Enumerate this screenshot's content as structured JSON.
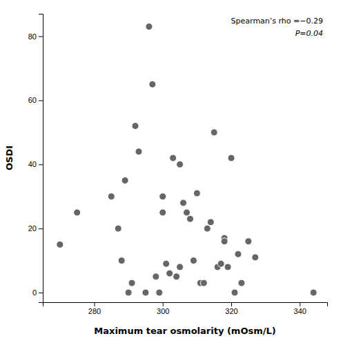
{
  "chart_data": {
    "type": "scatter",
    "x": [
      270,
      275,
      285,
      287,
      288,
      289,
      290,
      291,
      292,
      293,
      295,
      296,
      297,
      298,
      299,
      300,
      300,
      300,
      301,
      302,
      303,
      304,
      305,
      305,
      305,
      306,
      307,
      308,
      309,
      310,
      311,
      312,
      313,
      314,
      315,
      316,
      317,
      318,
      318,
      319,
      320,
      321,
      322,
      323,
      325,
      327,
      344
    ],
    "y": [
      15,
      25,
      30,
      20,
      10,
      35,
      0,
      3,
      52,
      44,
      0,
      83,
      65,
      5,
      0,
      30,
      30,
      25,
      9,
      6,
      42,
      5,
      8,
      8,
      40,
      28,
      25,
      23,
      10,
      31,
      3,
      3,
      20,
      22,
      50,
      8,
      9,
      17,
      16,
      8,
      42,
      0,
      12,
      3,
      16,
      11,
      0
    ],
    "color": "#666666",
    "xlabel": "Maximum tear osmolarity (mOsm/L)",
    "ylabel": "OSDI",
    "xlim": [
      265,
      348
    ],
    "ylim": [
      -3,
      87
    ],
    "xticks": [
      280,
      300,
      320,
      340
    ],
    "yticks": [
      0,
      20,
      40,
      60,
      80
    ],
    "annotations": [
      "Spearman’s rho =−0.29",
      "P=0.04"
    ]
  }
}
